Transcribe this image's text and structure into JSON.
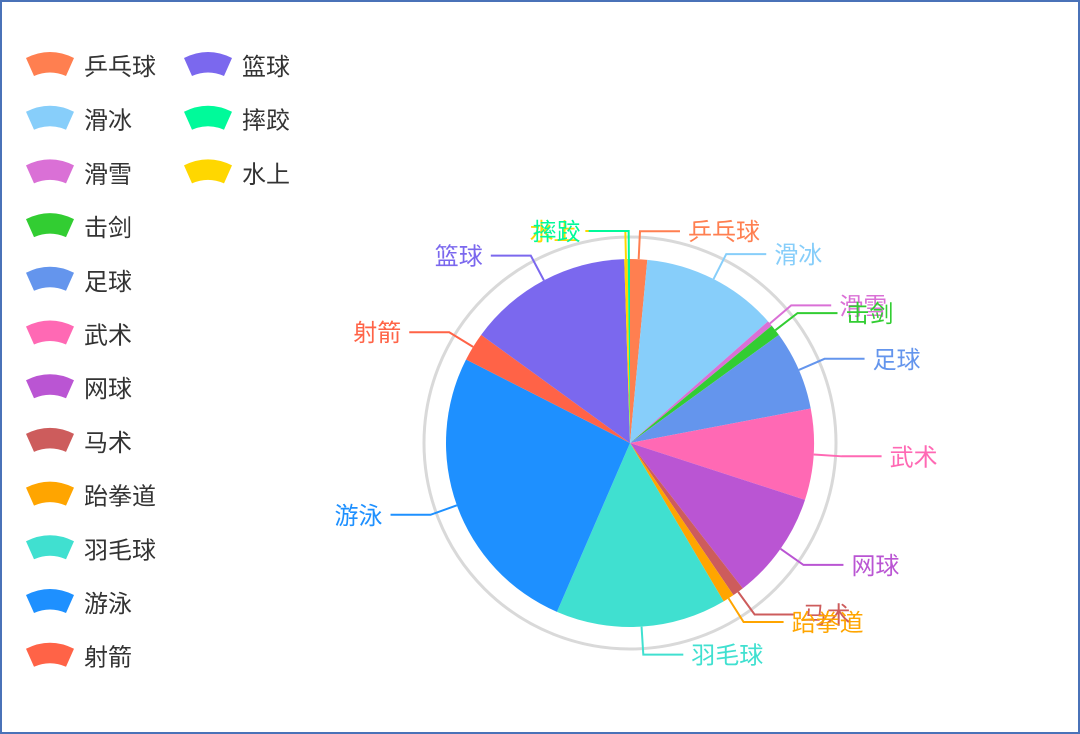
{
  "chart_data": {
    "type": "pie",
    "title": "",
    "legend_position": "left",
    "slices": [
      {
        "name": "乒乓球",
        "value": 1.5,
        "color": "#ff7f50"
      },
      {
        "name": "滑冰",
        "value": 12.0,
        "color": "#87cefa"
      },
      {
        "name": "滑雪",
        "value": 0.5,
        "color": "#da70d6"
      },
      {
        "name": "击剑",
        "value": 1.0,
        "color": "#32cd32"
      },
      {
        "name": "足球",
        "value": 7.0,
        "color": "#6495ed"
      },
      {
        "name": "武术",
        "value": 8.0,
        "color": "#ff69b4"
      },
      {
        "name": "网球",
        "value": 9.5,
        "color": "#ba55d3"
      },
      {
        "name": "马术",
        "value": 1.0,
        "color": "#cd5c5c"
      },
      {
        "name": "跆拳道",
        "value": 1.0,
        "color": "#ffa500"
      },
      {
        "name": "羽毛球",
        "value": 15.0,
        "color": "#40e0d0"
      },
      {
        "name": "游泳",
        "value": 26.0,
        "color": "#1e90ff"
      },
      {
        "name": "射箭",
        "value": 2.5,
        "color": "#ff6347"
      },
      {
        "name": "篮球",
        "value": 14.5,
        "color": "#7b68ee"
      },
      {
        "name": "水上",
        "value": 0.3,
        "color": "#ffd700"
      },
      {
        "name": "摔跤",
        "value": 0.2,
        "color": "#00fa9a"
      }
    ],
    "legend_order": [
      "乒乓球",
      "篮球",
      "滑冰",
      "摔跤",
      "滑雪",
      "水上",
      "击剑",
      "足球",
      "武术",
      "网球",
      "马术",
      "跆拳道",
      "羽毛球",
      "游泳",
      "射箭"
    ]
  }
}
